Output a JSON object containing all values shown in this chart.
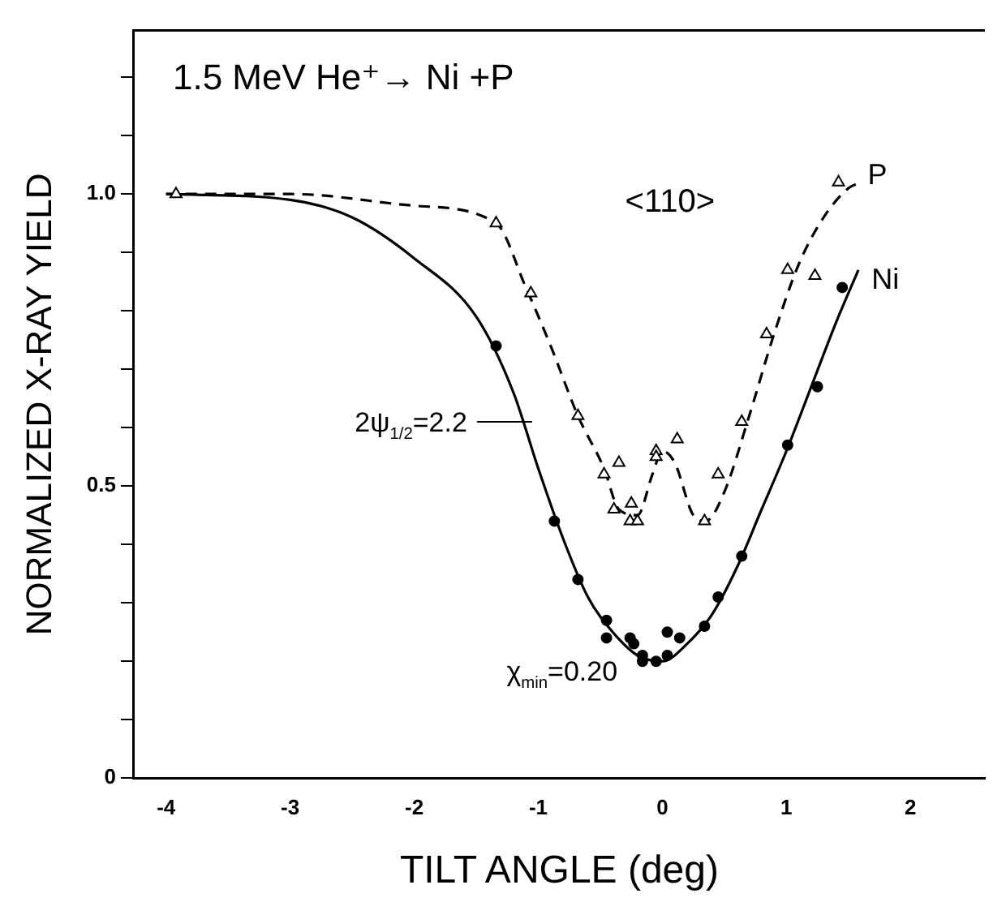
{
  "chart_data": {
    "type": "scatter",
    "title": "1.5 MeV He⁺→ Ni +P",
    "xlabel": "TILT ANGLE (deg)",
    "ylabel": "NORMALIZED X-RAY YIELD",
    "xlim": [
      -4.26,
      2.6
    ],
    "xticks": [
      -4,
      -3,
      -2,
      -1,
      0,
      1,
      2
    ],
    "ylim": [
      0,
      1.28
    ],
    "yticks": [
      0,
      {
        "value": 0.1,
        "label": null
      },
      {
        "value": 0.2,
        "label": null
      },
      {
        "value": 0.3,
        "label": null
      },
      {
        "value": 0.4,
        "label": null
      },
      0.5,
      {
        "value": 0.6,
        "label": null
      },
      {
        "value": 0.7,
        "label": null
      },
      {
        "value": 0.8,
        "label": null
      },
      {
        "value": 0.9,
        "label": null
      },
      {
        "value": 1.0,
        "label": "1.0"
      },
      {
        "value": 1.1,
        "label": null
      },
      {
        "value": 1.2,
        "label": null
      }
    ],
    "grid": false,
    "legend": false,
    "annotations": [
      "<110>",
      {
        "text": "2ψ$_{1/2}$=2.2",
        "x": -1.05,
        "y": 0.61
      },
      {
        "text": "χ$_{min}$=0.20",
        "x": -0.1,
        "y": 0.2
      }
    ],
    "series": [
      {
        "name": "P",
        "marker": "triangle",
        "color": "#000000",
        "x": [
          -3.92,
          -1.34,
          -1.06,
          -0.68,
          -0.47,
          -0.39,
          -0.35,
          -0.26,
          -0.25,
          -0.2,
          -0.05,
          -0.05,
          0.12,
          0.34,
          0.45,
          0.64,
          0.84,
          1.01,
          1.23,
          1.42
        ],
        "values": [
          1.0,
          0.95,
          0.83,
          0.62,
          0.52,
          0.46,
          0.54,
          0.44,
          0.47,
          0.44,
          0.56,
          0.55,
          0.58,
          0.44,
          0.52,
          0.61,
          0.76,
          0.87,
          0.86,
          1.02
        ]
      },
      {
        "name": "Ni",
        "marker": "circle",
        "color": "#000000",
        "x": [
          -1.34,
          -0.87,
          -0.68,
          -0.45,
          -0.45,
          -0.26,
          -0.23,
          -0.16,
          -0.16,
          -0.05,
          0.04,
          0.04,
          0.14,
          0.34,
          0.45,
          0.64,
          1.01,
          1.25,
          1.45
        ],
        "values": [
          0.74,
          0.44,
          0.34,
          0.27,
          0.24,
          0.24,
          0.23,
          0.21,
          0.2,
          0.2,
          0.25,
          0.21,
          0.24,
          0.26,
          0.31,
          0.38,
          0.57,
          0.67,
          0.84
        ]
      },
      {
        "type": "line",
        "line_style": "dashed",
        "marker": "none",
        "color": "#000000",
        "x": [
          -4,
          -3,
          -2,
          -1.34,
          -1.1,
          -0.9,
          -0.68,
          -0.47,
          -0.35,
          -0.2,
          -0.08,
          0,
          0.1,
          0.25,
          0.35,
          0.5,
          0.7,
          0.9,
          1.1,
          1.3,
          1.5,
          1.6
        ],
        "values": [
          1.0,
          1.0,
          0.98,
          0.95,
          0.84,
          0.74,
          0.62,
          0.53,
          0.46,
          0.45,
          0.52,
          0.56,
          0.54,
          0.45,
          0.44,
          0.49,
          0.62,
          0.76,
          0.88,
          0.96,
          1.01,
          1.02
        ]
      },
      {
        "type": "line",
        "line_style": "solid",
        "marker": "none",
        "color": "#000000",
        "x": [
          -4,
          -3,
          -2.5,
          -2,
          -1.5,
          -1.2,
          -1,
          -0.8,
          -0.6,
          -0.4,
          -0.2,
          0,
          0.2,
          0.4,
          0.6,
          0.8,
          1.0,
          1.2,
          1.4,
          1.58
        ],
        "values": [
          1.0,
          0.99,
          0.96,
          0.89,
          0.79,
          0.66,
          0.53,
          0.41,
          0.31,
          0.25,
          0.21,
          0.2,
          0.23,
          0.28,
          0.36,
          0.46,
          0.56,
          0.67,
          0.78,
          0.87
        ]
      }
    ]
  }
}
